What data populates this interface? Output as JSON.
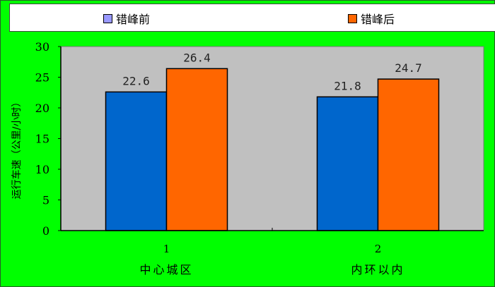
{
  "chart_data": {
    "type": "bar",
    "categories": [
      "1",
      "2"
    ],
    "category_labels": [
      "中心城区",
      "内环以内"
    ],
    "series": [
      {
        "name": "错峰前",
        "values": [
          22.6,
          21.8
        ],
        "color": "#0066cc",
        "legend_color": "#9999ff"
      },
      {
        "name": "错峰后",
        "values": [
          26.4,
          24.7
        ],
        "color": "#ff6600",
        "legend_color": "#ff6600"
      }
    ],
    "ylabel": "运行车速（公里/小时）",
    "xlabel": "",
    "ylim": [
      0,
      30
    ],
    "yticks": [
      0,
      5,
      10,
      15,
      20,
      25,
      30
    ],
    "grid": false,
    "legend": "top",
    "plot_background": "#c0c0c0",
    "background": "#00ff00"
  }
}
